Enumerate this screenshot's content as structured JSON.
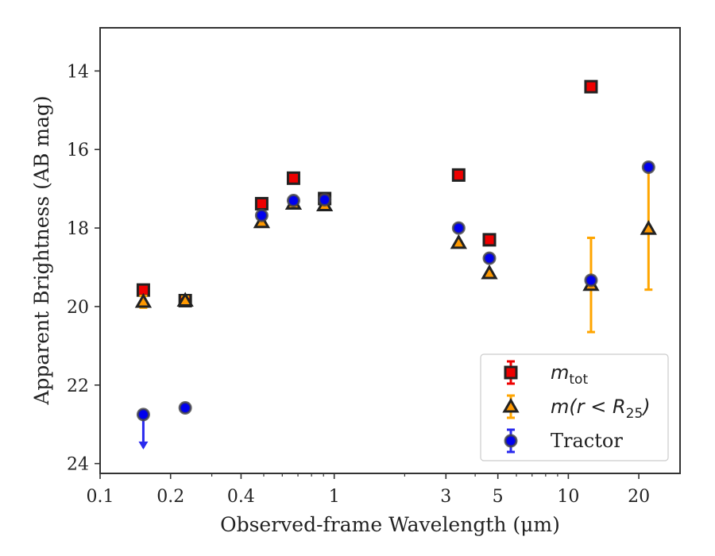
{
  "chart_data": {
    "type": "scatter",
    "xlabel": "Observed-frame Wavelength (μm)",
    "ylabel": "Apparent Brightness (AB mag)",
    "xscale": "log",
    "xlim": [
      0.1,
      30
    ],
    "ylim": [
      24.25,
      12.9
    ],
    "y_inverted": true,
    "x_ticks": [
      {
        "value": 0.1,
        "label": "0.1"
      },
      {
        "value": 0.2,
        "label": "0.2"
      },
      {
        "value": 0.4,
        "label": "0.4"
      },
      {
        "value": 1,
        "label": "1"
      },
      {
        "value": 3,
        "label": "3"
      },
      {
        "value": 5,
        "label": "5"
      },
      {
        "value": 10,
        "label": "10"
      },
      {
        "value": 20,
        "label": "20"
      }
    ],
    "y_ticks": [
      {
        "value": 14,
        "label": "14"
      },
      {
        "value": 16,
        "label": "16"
      },
      {
        "value": 18,
        "label": "18"
      },
      {
        "value": 20,
        "label": "20"
      },
      {
        "value": 22,
        "label": "22"
      },
      {
        "value": 24,
        "label": "24"
      }
    ],
    "grid": false,
    "legend_position": "bottom-right",
    "series": [
      {
        "name": "m_tot",
        "legend_main": "m",
        "legend_sub": "tot",
        "marker": "square",
        "face_color": "#ee0000",
        "edge_color": "#222222",
        "error_color": "#ee0000",
        "points": [
          {
            "x": 0.153,
            "y": 19.58
          },
          {
            "x": 0.231,
            "y": 19.85
          },
          {
            "x": 0.49,
            "y": 17.38
          },
          {
            "x": 0.67,
            "y": 16.73
          },
          {
            "x": 0.91,
            "y": 17.25
          },
          {
            "x": 3.4,
            "y": 16.65
          },
          {
            "x": 4.6,
            "y": 18.3
          },
          {
            "x": 12.5,
            "y": 14.4
          }
        ]
      },
      {
        "name": "m(r < R_25)",
        "legend_main": "m(r < R",
        "legend_sub": "25",
        "legend_tail": ")",
        "marker": "triangle",
        "face_color": "#ff9900",
        "edge_color": "#222222",
        "error_color": "#ffa500",
        "points": [
          {
            "x": 0.153,
            "y": 19.88,
            "err": 0.15
          },
          {
            "x": 0.231,
            "y": 19.85,
            "err": 0.1
          },
          {
            "x": 0.49,
            "y": 17.85
          },
          {
            "x": 0.67,
            "y": 17.38
          },
          {
            "x": 0.91,
            "y": 17.42
          },
          {
            "x": 3.4,
            "y": 18.38
          },
          {
            "x": 4.6,
            "y": 19.15
          },
          {
            "x": 12.5,
            "y": 19.45,
            "err_low": 1.2,
            "err_high": 1.2
          },
          {
            "x": 22.0,
            "y": 18.02,
            "err_low": 1.5,
            "err_high": 1.55
          }
        ]
      },
      {
        "name": "Tractor",
        "legend_main": "Tractor",
        "marker": "circle",
        "face_color": "#0000ee",
        "edge_color": "#444444",
        "error_color": "#2a2aee",
        "points": [
          {
            "x": 0.153,
            "y": 22.75,
            "upper_limit": true
          },
          {
            "x": 0.231,
            "y": 22.58
          },
          {
            "x": 0.49,
            "y": 17.68
          },
          {
            "x": 0.67,
            "y": 17.3
          },
          {
            "x": 0.91,
            "y": 17.28
          },
          {
            "x": 3.4,
            "y": 18.0
          },
          {
            "x": 4.6,
            "y": 18.77
          },
          {
            "x": 12.5,
            "y": 19.33
          },
          {
            "x": 22.0,
            "y": 16.45
          }
        ]
      }
    ]
  }
}
